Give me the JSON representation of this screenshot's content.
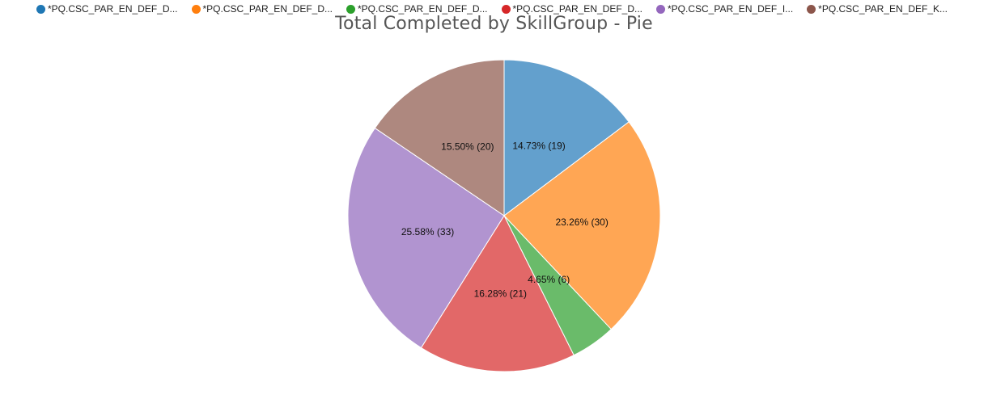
{
  "chart_data": {
    "type": "pie",
    "title": "Total Completed by SkillGroup - Pie",
    "legend_position": "top",
    "series": [
      {
        "name": "*PQ.CSC_PAR_EN_DEF_D...",
        "value": 19,
        "percent_label": "14.73% (19)",
        "color": "#63a0cd"
      },
      {
        "name": "*PQ.CSC_PAR_EN_DEF_D...",
        "value": 30,
        "percent_label": "23.26% (30)",
        "color": "#ffa654"
      },
      {
        "name": "*PQ.CSC_PAR_EN_DEF_D...",
        "value": 6,
        "percent_label": "4.65% (6)",
        "color": "#6abb6a"
      },
      {
        "name": "*PQ.CSC_PAR_EN_DEF_D...",
        "value": 21,
        "percent_label": "16.28% (21)",
        "color": "#e26868"
      },
      {
        "name": "*PQ.CSC_PAR_EN_DEF_I...",
        "value": 33,
        "percent_label": "25.58% (33)",
        "color": "#b194d0"
      },
      {
        "name": "*PQ.CSC_PAR_EN_DEF_K...",
        "value": 20,
        "percent_label": "15.50% (20)",
        "color": "#ae887f"
      }
    ],
    "legend_colors": [
      "#1f77b4",
      "#ff7f0e",
      "#2ca02c",
      "#d62728",
      "#9467bd",
      "#8c564b"
    ]
  }
}
